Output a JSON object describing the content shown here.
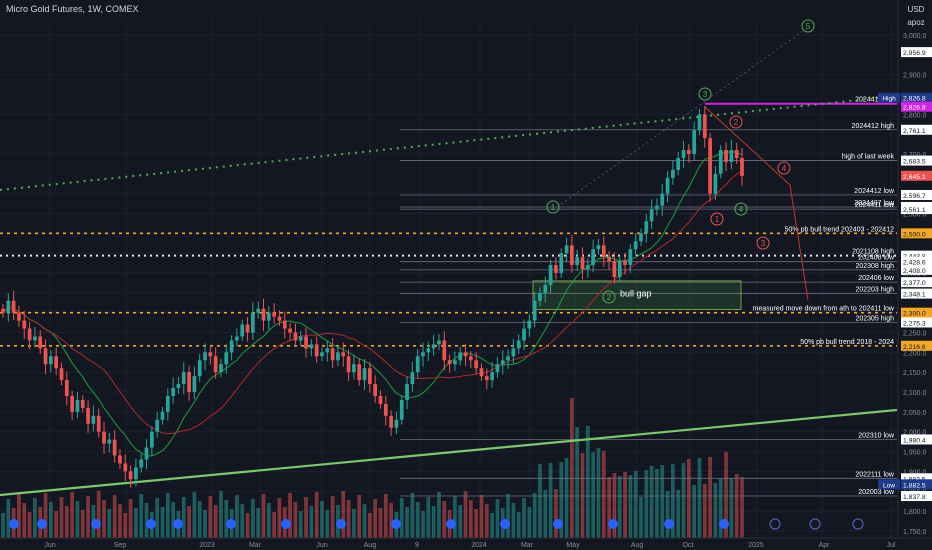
{
  "header": {
    "title": "Micro Gold Futures, 1W, COMEX",
    "currency": "USD",
    "scale_mode": "apoz"
  },
  "colors": {
    "background": "#131722",
    "bull": "#26a69a",
    "bear": "#ef5350",
    "support_line": "#7cc86b",
    "fib_orange": "#f5a623",
    "ath_magenta": "#d321e6",
    "grid": "#1c2130"
  },
  "x_axis": {
    "ticks": [
      "Jun",
      "Sep",
      "2023",
      "Mar",
      "Jun",
      "Aug",
      "9",
      "2024",
      "Mar",
      "May",
      "Aug",
      "Oct",
      "2025",
      "Apr",
      "Jul"
    ]
  },
  "price_axis": {
    "ticks": [
      "3,000.0",
      "2,900.0",
      "2,800.0",
      "2,700.0",
      "2,600.0",
      "2,550.0",
      "2,500.0",
      "2,450.0",
      "2,400.0",
      "2,350.0",
      "2,300.0",
      "2,250.0",
      "2,200.0",
      "2,150.0",
      "2,100.0",
      "2,050.0",
      "2,000.0",
      "1,950.0",
      "1,900.0",
      "1,850.0",
      "1,800.0",
      "1,750.0"
    ],
    "badges": [
      {
        "text": "2,956.9",
        "label": "",
        "style": "white"
      },
      {
        "text": "2,826.8",
        "label": "High",
        "style": "navy"
      },
      {
        "text": "2,826.8",
        "label": "",
        "style": "magenta"
      },
      {
        "text": "2,761.1",
        "label": "",
        "style": "white"
      },
      {
        "text": "2,683.5",
        "label": "",
        "style": "white"
      },
      {
        "text": "2,645.1",
        "label": "",
        "style": "red"
      },
      {
        "text": "2,596.7",
        "label": "",
        "style": "white"
      },
      {
        "text": "2,566.5",
        "label": "",
        "style": "white"
      },
      {
        "text": "2,561.1",
        "label": "",
        "style": "white"
      },
      {
        "text": "2,500.0",
        "label": "",
        "style": "orange"
      },
      {
        "text": "2,443.8",
        "label": "",
        "style": "white"
      },
      {
        "text": "2,428.6",
        "label": "",
        "style": "white"
      },
      {
        "text": "2,408.0",
        "label": "",
        "style": "white"
      },
      {
        "text": "2,377.0",
        "label": "",
        "style": "white"
      },
      {
        "text": "2,348.1",
        "label": "",
        "style": "white"
      },
      {
        "text": "2,300.0",
        "label": "",
        "style": "orange"
      },
      {
        "text": "2,275.3",
        "label": "",
        "style": "white"
      },
      {
        "text": "2,216.6",
        "label": "",
        "style": "orange"
      },
      {
        "text": "1,980.4",
        "label": "",
        "style": "white"
      },
      {
        "text": "1,882.5",
        "label": "",
        "style": "white"
      },
      {
        "text": "1,882.5",
        "label": "Low",
        "style": "navy"
      },
      {
        "text": "1,837.8",
        "label": "",
        "style": "white"
      }
    ]
  },
  "levels": [
    {
      "price": 2826.8,
      "label": "2024410 ath",
      "style": "magenta"
    },
    {
      "price": 2761.1,
      "label": "2024412 high",
      "style": "grey"
    },
    {
      "price": 2683.5,
      "label": "high of last week",
      "style": "grey"
    },
    {
      "price": 2596.7,
      "label": "2024412 low",
      "style": "grey"
    },
    {
      "price": 2566.5,
      "label": "2024407 low",
      "style": "grey"
    },
    {
      "price": 2561.1,
      "label": "2024411 low",
      "style": "grey"
    },
    {
      "price": 2500.0,
      "label": "50% pb bull trend 202403 - 202412",
      "style": "orange"
    },
    {
      "price": 2443.8,
      "label": "2021108 high",
      "style": "white"
    },
    {
      "price": 2428.6,
      "label": "202408 low",
      "style": "grey"
    },
    {
      "price": 2408.0,
      "label": "202308 high",
      "style": "grey"
    },
    {
      "price": 2377.0,
      "label": "202406 low",
      "style": "grey"
    },
    {
      "price": 2348.1,
      "label": "202203 high",
      "style": "grey"
    },
    {
      "price": 2300.0,
      "label": "measured move down from ath to 202411 low",
      "style": "orange"
    },
    {
      "price": 2275.3,
      "label": "202305 high",
      "style": "grey"
    },
    {
      "price": 2216.6,
      "label": "50% pb bull trend 2018 - 2024",
      "style": "orange"
    },
    {
      "price": 1980.4,
      "label": "202310 low",
      "style": "grey"
    },
    {
      "price": 1882.5,
      "label": "2022111 low",
      "style": "grey"
    },
    {
      "price": 1837.8,
      "label": "202003 low",
      "style": "grey"
    }
  ],
  "annotations": {
    "bull_gap": "bull gap",
    "waves": [
      {
        "label": "1",
        "color": "green"
      },
      {
        "label": "2",
        "color": "green"
      },
      {
        "label": "3",
        "color": "green"
      },
      {
        "label": "4",
        "color": "green"
      },
      {
        "label": "5",
        "color": "green"
      },
      {
        "label": "1",
        "color": "red"
      },
      {
        "label": "2",
        "color": "red"
      },
      {
        "label": "3",
        "color": "red"
      },
      {
        "label": "4",
        "color": "red"
      }
    ]
  },
  "chart_data": {
    "type": "candlestick",
    "symbol": "Micro Gold Futures",
    "interval": "1W",
    "ylim": [
      1730,
      3050
    ],
    "series": [
      {
        "name": "ohlc",
        "close": [
          2300,
          2330,
          2300,
          2280,
          2260,
          2230,
          2240,
          2210,
          2170,
          2190,
          2160,
          2130,
          2090,
          2050,
          2080,
          2060,
          2020,
          2040,
          2000,
          1970,
          1980,
          1940,
          1920,
          1900,
          1880,
          1910,
          1930,
          1960,
          2000,
          2030,
          2050,
          2090,
          2110,
          2120,
          2150,
          2100,
          2140,
          2180,
          2200,
          2190,
          2150,
          2170,
          2200,
          2230,
          2240,
          2270,
          2250,
          2300,
          2310,
          2280,
          2300,
          2290,
          2280,
          2260,
          2250,
          2230,
          2240,
          2210,
          2220,
          2190,
          2200,
          2210,
          2180,
          2200,
          2190,
          2150,
          2170,
          2130,
          2160,
          2120,
          2090,
          2070,
          2040,
          2010,
          2030,
          2080,
          2120,
          2150,
          2190,
          2200,
          2210,
          2220,
          2230,
          2180,
          2170,
          2180,
          2200,
          2190,
          2180,
          2160,
          2140,
          2130,
          2150,
          2170,
          2180,
          2190,
          2210,
          2230,
          2260,
          2280,
          2330,
          2350,
          2370,
          2420,
          2400,
          2450,
          2470,
          2420,
          2440,
          2410,
          2420,
          2460,
          2470,
          2440,
          2430,
          2390,
          2430,
          2420,
          2460,
          2480,
          2500,
          2530,
          2560,
          2570,
          2600,
          2640,
          2660,
          2690,
          2710,
          2700,
          2760,
          2800,
          2740,
          2600,
          2650,
          2710,
          2680,
          2710,
          2690,
          2645
        ]
      }
    ]
  }
}
